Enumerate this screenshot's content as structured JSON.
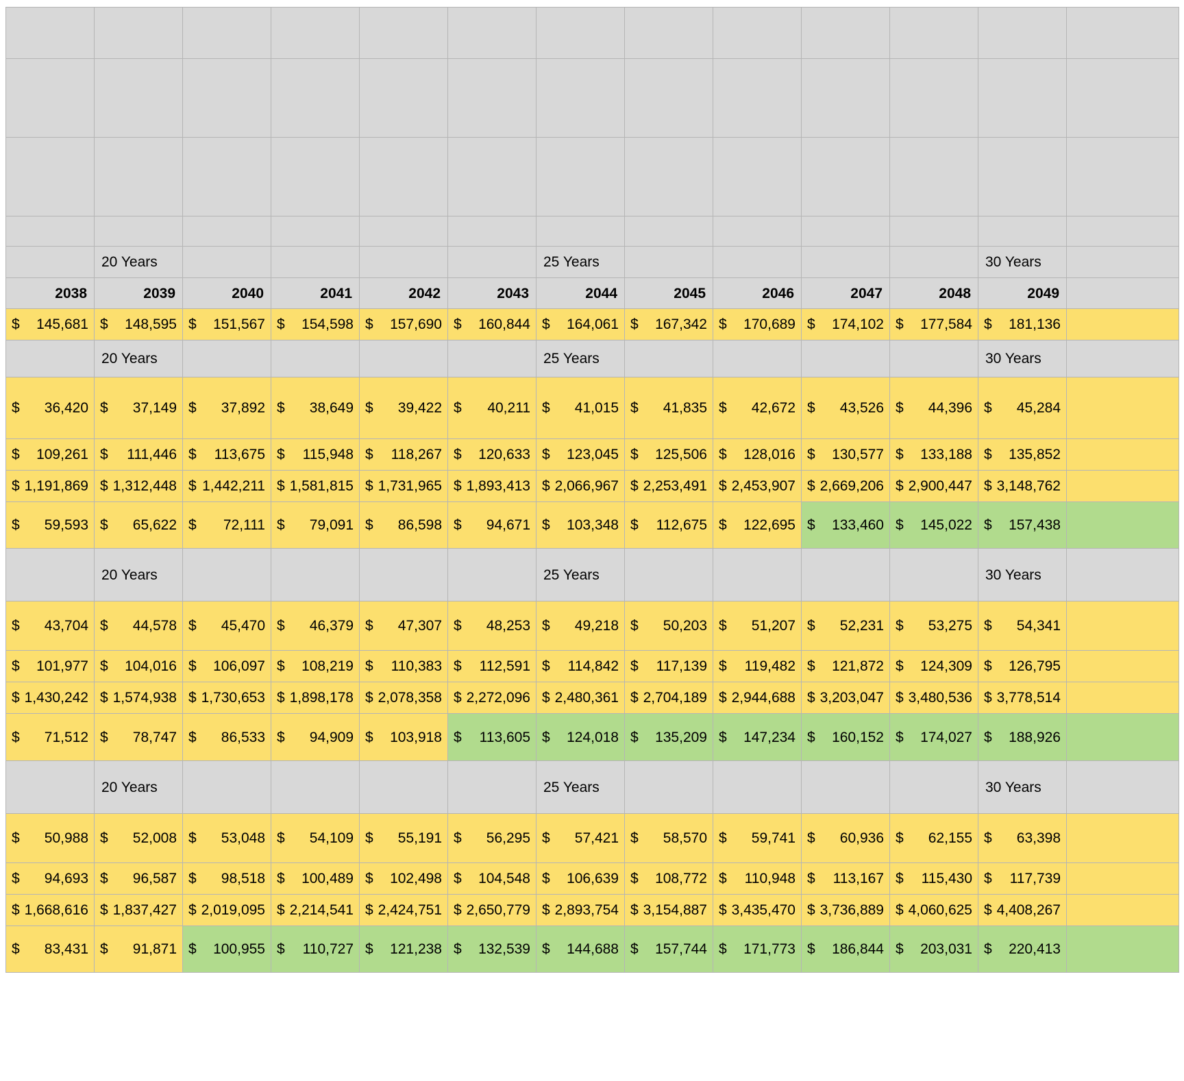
{
  "sheet": {
    "currency_symbol": "$",
    "colors": {
      "highlight_yellow": "#fcdf6e",
      "highlight_green": "#b1db8d",
      "header_gray": "#d8d8d8"
    },
    "period_labels": [
      "20 Years",
      "25 Years",
      "30 Years"
    ],
    "period_label_columns": [
      1,
      6,
      11
    ],
    "years": [
      "2038",
      "2039",
      "2040",
      "2041",
      "2042",
      "2043",
      "2044",
      "2045",
      "2046",
      "2047",
      "2048",
      "2049"
    ],
    "intro_row": {
      "values": [
        "145,681",
        "148,595",
        "151,567",
        "154,598",
        "157,690",
        "160,844",
        "164,061",
        "167,342",
        "170,689",
        "174,102",
        "177,584",
        "181,136"
      ],
      "green_from": null
    },
    "sections": [
      {
        "rows": [
          {
            "values": [
              "36,420",
              "37,149",
              "37,892",
              "38,649",
              "39,422",
              "40,211",
              "41,015",
              "41,835",
              "42,672",
              "43,526",
              "44,396",
              "45,284"
            ],
            "green_from": null
          },
          {
            "values": [
              "109,261",
              "111,446",
              "113,675",
              "115,948",
              "118,267",
              "120,633",
              "123,045",
              "125,506",
              "128,016",
              "130,577",
              "133,188",
              "135,852"
            ],
            "green_from": null
          },
          {
            "values": [
              "1,191,869",
              "1,312,448",
              "1,442,211",
              "1,581,815",
              "1,731,965",
              "1,893,413",
              "2,066,967",
              "2,253,491",
              "2,453,907",
              "2,669,206",
              "2,900,447",
              "3,148,762"
            ],
            "green_from": null
          },
          {
            "values": [
              "59,593",
              "65,622",
              "72,111",
              "79,091",
              "86,598",
              "94,671",
              "103,348",
              "112,675",
              "122,695",
              "133,460",
              "145,022",
              "157,438"
            ],
            "green_from": 9
          }
        ]
      },
      {
        "rows": [
          {
            "values": [
              "43,704",
              "44,578",
              "45,470",
              "46,379",
              "47,307",
              "48,253",
              "49,218",
              "50,203",
              "51,207",
              "52,231",
              "53,275",
              "54,341"
            ],
            "green_from": null
          },
          {
            "values": [
              "101,977",
              "104,016",
              "106,097",
              "108,219",
              "110,383",
              "112,591",
              "114,842",
              "117,139",
              "119,482",
              "121,872",
              "124,309",
              "126,795"
            ],
            "green_from": null
          },
          {
            "values": [
              "1,430,242",
              "1,574,938",
              "1,730,653",
              "1,898,178",
              "2,078,358",
              "2,272,096",
              "2,480,361",
              "2,704,189",
              "2,944,688",
              "3,203,047",
              "3,480,536",
              "3,778,514"
            ],
            "green_from": null
          },
          {
            "values": [
              "71,512",
              "78,747",
              "86,533",
              "94,909",
              "103,918",
              "113,605",
              "124,018",
              "135,209",
              "147,234",
              "160,152",
              "174,027",
              "188,926"
            ],
            "green_from": 5
          }
        ]
      },
      {
        "rows": [
          {
            "values": [
              "50,988",
              "52,008",
              "53,048",
              "54,109",
              "55,191",
              "56,295",
              "57,421",
              "58,570",
              "59,741",
              "60,936",
              "62,155",
              "63,398"
            ],
            "green_from": null
          },
          {
            "values": [
              "94,693",
              "96,587",
              "98,518",
              "100,489",
              "102,498",
              "104,548",
              "106,639",
              "108,772",
              "110,948",
              "113,167",
              "115,430",
              "117,739"
            ],
            "green_from": null
          },
          {
            "values": [
              "1,668,616",
              "1,837,427",
              "2,019,095",
              "2,214,541",
              "2,424,751",
              "2,650,779",
              "2,893,754",
              "3,154,887",
              "3,435,470",
              "3,736,889",
              "4,060,625",
              "4,408,267"
            ],
            "green_from": null
          },
          {
            "values": [
              "83,431",
              "91,871",
              "100,955",
              "110,727",
              "121,238",
              "132,539",
              "144,688",
              "157,744",
              "171,773",
              "186,844",
              "203,031",
              "220,413"
            ],
            "green_from": 2
          }
        ]
      }
    ]
  }
}
